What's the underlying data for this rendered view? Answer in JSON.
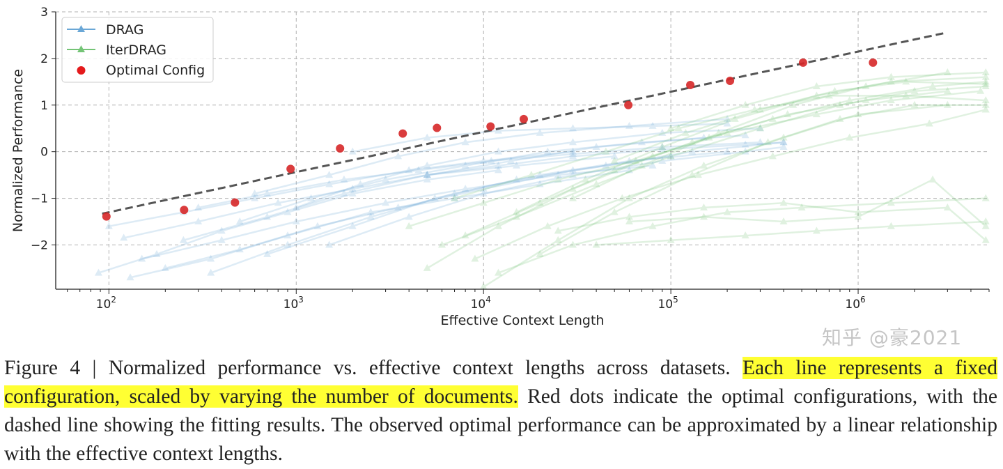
{
  "chart_data": {
    "type": "line",
    "xlabel": "Effective Context Length",
    "ylabel": "Normalized Performance",
    "xscale": "log",
    "xlim": [
      52,
      5000000
    ],
    "ylim": [
      -2.95,
      3
    ],
    "xticks": [
      100,
      1000,
      10000,
      100000,
      1000000
    ],
    "xtick_labels": [
      "10",
      "10",
      "10",
      "10",
      "10"
    ],
    "xtick_exponents": [
      "2",
      "3",
      "4",
      "5",
      "6"
    ],
    "yticks": [
      -2,
      -1,
      0,
      1,
      2,
      3
    ],
    "ytick_labels": [
      "−2",
      "−1",
      "0",
      "1",
      "2",
      "3"
    ],
    "grid": true,
    "legend_placement": "top-left",
    "legend": [
      "DRAG",
      "IterDRAG",
      "Optimal Config"
    ],
    "colors": {
      "DRAG": "#6aa7d6",
      "IterDRAG": "#74c476",
      "optimal": "#d62728",
      "fit": "#555555"
    },
    "series": [
      {
        "name": "DRAG",
        "lines": [
          [
            [
              88,
              -2.6
            ],
            [
              180,
              -2.2
            ],
            [
              400,
              -1.7
            ],
            [
              900,
              -1.3
            ],
            [
              2000,
              -0.9
            ],
            [
              5000,
              -0.6
            ],
            [
              12000,
              -0.4
            ]
          ],
          [
            [
              100,
              -1.6
            ],
            [
              250,
              -1.3
            ],
            [
              600,
              -1.0
            ],
            [
              1500,
              -0.7
            ],
            [
              4000,
              -0.4
            ],
            [
              10000,
              -0.2
            ],
            [
              30000,
              0.0
            ]
          ],
          [
            [
              120,
              -1.85
            ],
            [
              300,
              -1.5
            ],
            [
              800,
              -1.1
            ],
            [
              2000,
              -0.8
            ],
            [
              5000,
              -0.5
            ],
            [
              15000,
              -0.3
            ],
            [
              50000,
              -0.1
            ]
          ],
          [
            [
              150,
              -2.3
            ],
            [
              400,
              -1.9
            ],
            [
              1000,
              -1.5
            ],
            [
              3000,
              -1.1
            ],
            [
              8000,
              -0.8
            ],
            [
              25000,
              -0.5
            ],
            [
              80000,
              -0.3
            ]
          ],
          [
            [
              200,
              -2.5
            ],
            [
              500,
              -2.1
            ],
            [
              1300,
              -1.6
            ],
            [
              3500,
              -1.2
            ],
            [
              10000,
              -0.8
            ],
            [
              30000,
              -0.4
            ],
            [
              100000,
              -0.1
            ]
          ],
          [
            [
              250,
              -1.9
            ],
            [
              700,
              -1.4
            ],
            [
              1800,
              -0.9
            ],
            [
              5000,
              -0.5
            ],
            [
              14000,
              -0.2
            ],
            [
              40000,
              0.1
            ],
            [
              150000,
              0.3
            ]
          ],
          [
            [
              350,
              -2.6
            ],
            [
              900,
              -2.0
            ],
            [
              2500,
              -1.4
            ],
            [
              7000,
              -0.9
            ],
            [
              20000,
              -0.5
            ],
            [
              60000,
              -0.2
            ],
            [
              200000,
              0.0
            ]
          ],
          [
            [
              500,
              -1.5
            ],
            [
              1200,
              -1.0
            ],
            [
              3000,
              -0.6
            ],
            [
              8000,
              -0.3
            ],
            [
              22000,
              0.0
            ],
            [
              70000,
              0.2
            ],
            [
              250000,
              0.35
            ]
          ],
          [
            [
              700,
              -2.2
            ],
            [
              2000,
              -1.6
            ],
            [
              5500,
              -1.0
            ],
            [
              15000,
              -0.6
            ],
            [
              45000,
              -0.3
            ],
            [
              130000,
              0.0
            ],
            [
              400000,
              0.2
            ]
          ],
          [
            [
              1000,
              -1.2
            ],
            [
              2200,
              -0.7
            ],
            [
              5000,
              -0.3
            ],
            [
              12000,
              0.0
            ],
            [
              30000,
              0.2
            ],
            [
              90000,
              0.4
            ],
            [
              300000,
              0.5
            ]
          ],
          [
            [
              1500,
              -2.0
            ],
            [
              4000,
              -1.4
            ],
            [
              10000,
              -0.9
            ],
            [
              30000,
              -0.5
            ],
            [
              90000,
              -0.2
            ],
            [
              250000,
              0.0
            ],
            [
              400000,
              0.1
            ]
          ],
          [
            [
              600,
              -0.9
            ],
            [
              1500,
              -0.5
            ],
            [
              3500,
              -0.1
            ],
            [
              8000,
              0.2
            ],
            [
              20000,
              0.4
            ],
            [
              60000,
              0.55
            ],
            [
              200000,
              0.7
            ]
          ],
          [
            [
              2000,
              0.0
            ],
            [
              5000,
              0.3
            ],
            [
              12000,
              0.45
            ],
            [
              30000,
              0.5
            ],
            [
              80000,
              0.55
            ],
            [
              200000,
              0.6
            ]
          ],
          [
            [
              300,
              -1.2
            ],
            [
              700,
              -0.9
            ],
            [
              1800,
              -0.6
            ],
            [
              4500,
              -0.4
            ],
            [
              11000,
              -0.2
            ],
            [
              30000,
              -0.05
            ],
            [
              90000,
              0.1
            ],
            [
              300000,
              0.2
            ]
          ],
          [
            [
              130,
              -2.7
            ],
            [
              350,
              -2.3
            ],
            [
              900,
              -1.8
            ],
            [
              2500,
              -1.3
            ],
            [
              7000,
              -1.0
            ],
            [
              20000,
              -0.7
            ],
            [
              60000,
              -0.4
            ]
          ],
          [
            [
              5000,
              -0.5
            ],
            [
              12000,
              -0.3
            ],
            [
              30000,
              -0.1
            ],
            [
              90000,
              0.05
            ],
            [
              250000,
              0.15
            ],
            [
              400000,
              0.2
            ]
          ]
        ]
      },
      {
        "name": "IterDRAG",
        "lines": [
          [
            [
              5000,
              -2.5
            ],
            [
              12000,
              -1.6
            ],
            [
              30000,
              -0.8
            ],
            [
              80000,
              -0.1
            ],
            [
              200000,
              0.4
            ],
            [
              600000,
              0.8
            ],
            [
              1500000,
              1.1
            ],
            [
              4500000,
              1.3
            ]
          ],
          [
            [
              8000,
              -1.8
            ],
            [
              20000,
              -1.1
            ],
            [
              50000,
              -0.4
            ],
            [
              130000,
              0.2
            ],
            [
              350000,
              0.7
            ],
            [
              900000,
              1.1
            ],
            [
              2500000,
              1.4
            ],
            [
              4800000,
              1.5
            ]
          ],
          [
            [
              10000,
              -2.9
            ],
            [
              25000,
              -1.9
            ],
            [
              60000,
              -1.0
            ],
            [
              150000,
              -0.3
            ],
            [
              400000,
              0.3
            ],
            [
              1000000,
              0.8
            ],
            [
              3000000,
              1.0
            ]
          ],
          [
            [
              6000,
              -2.0
            ],
            [
              15000,
              -1.4
            ],
            [
              40000,
              -0.7
            ],
            [
              100000,
              -0.1
            ],
            [
              300000,
              0.5
            ],
            [
              800000,
              1.0
            ],
            [
              2000000,
              1.3
            ],
            [
              4800000,
              1.4
            ]
          ],
          [
            [
              15000,
              -1.3
            ],
            [
              35000,
              -0.6
            ],
            [
              90000,
              0.1
            ],
            [
              220000,
              0.7
            ],
            [
              600000,
              1.2
            ],
            [
              1500000,
              1.5
            ],
            [
              4800000,
              1.6
            ]
          ],
          [
            [
              20000,
              -2.2
            ],
            [
              50000,
              -1.3
            ],
            [
              130000,
              -0.5
            ],
            [
              330000,
              0.2
            ],
            [
              800000,
              0.7
            ],
            [
              2000000,
              1.0
            ],
            [
              4800000,
              1.0
            ]
          ],
          [
            [
              30000,
              -1.0
            ],
            [
              70000,
              -0.3
            ],
            [
              180000,
              0.4
            ],
            [
              450000,
              1.0
            ],
            [
              1100000,
              1.4
            ],
            [
              3000000,
              1.7
            ]
          ],
          [
            [
              12000,
              -2.6
            ],
            [
              30000,
              -2.0
            ],
            [
              80000,
              -1.6
            ],
            [
              200000,
              -1.3
            ],
            [
              500000,
              -1.2
            ],
            [
              1500000,
              -1.1
            ],
            [
              4800000,
              -1.0
            ]
          ],
          [
            [
              40000,
              -2.0
            ],
            [
              100000,
              -1.9
            ],
            [
              250000,
              -1.8
            ],
            [
              600000,
              -1.7
            ],
            [
              1500000,
              -1.6
            ],
            [
              4800000,
              -1.5
            ]
          ],
          [
            [
              25000,
              -1.7
            ],
            [
              60000,
              -1.4
            ],
            [
              150000,
              -1.2
            ],
            [
              400000,
              -1.1
            ],
            [
              1000000,
              -1.3
            ],
            [
              3000000,
              -1.2
            ],
            [
              4800000,
              -1.9
            ]
          ],
          [
            [
              50000,
              -0.2
            ],
            [
              120000,
              0.4
            ],
            [
              300000,
              0.9
            ],
            [
              750000,
              1.3
            ],
            [
              1800000,
              1.5
            ],
            [
              4800000,
              1.45
            ]
          ],
          [
            [
              7000,
              -1.0
            ],
            [
              18000,
              -0.5
            ],
            [
              45000,
              0.0
            ],
            [
              110000,
              0.5
            ],
            [
              280000,
              0.9
            ],
            [
              700000,
              1.2
            ],
            [
              1800000,
              1.2
            ],
            [
              4800000,
              1.1
            ]
          ],
          [
            [
              100000,
              0.5
            ],
            [
              250000,
              1.0
            ],
            [
              600000,
              1.4
            ],
            [
              1500000,
              1.6
            ],
            [
              4800000,
              1.7
            ]
          ],
          [
            [
              9000,
              -2.3
            ],
            [
              22000,
              -1.6
            ],
            [
              55000,
              -1.0
            ],
            [
              140000,
              -0.5
            ],
            [
              350000,
              -0.1
            ],
            [
              900000,
              0.3
            ],
            [
              2400000,
              0.6
            ],
            [
              4800000,
              0.9
            ]
          ],
          [
            [
              60000,
              -1.5
            ],
            [
              150000,
              -1.4
            ],
            [
              400000,
              -1.5
            ],
            [
              1000000,
              -1.4
            ],
            [
              2500000,
              -0.6
            ],
            [
              4800000,
              -1.6
            ]
          ],
          [
            [
              4000,
              -1.6
            ],
            [
              10000,
              -1.1
            ],
            [
              25000,
              -0.6
            ],
            [
              65000,
              -0.2
            ],
            [
              160000,
              0.3
            ],
            [
              420000,
              0.8
            ],
            [
              1100000,
              1.1
            ],
            [
              3000000,
              1.3
            ]
          ]
        ]
      }
    ],
    "optimal_config": [
      [
        97,
        -1.39
      ],
      [
        252,
        -1.25
      ],
      [
        471,
        -1.09
      ],
      [
        933,
        -0.37
      ],
      [
        1714,
        0.07
      ],
      [
        3705,
        0.39
      ],
      [
        5640,
        0.51
      ],
      [
        10900,
        0.54
      ],
      [
        16400,
        0.7
      ],
      [
        59300,
        1.0
      ],
      [
        127000,
        1.43
      ],
      [
        207000,
        1.52
      ],
      [
        508000,
        1.91
      ],
      [
        1200000,
        1.91
      ]
    ],
    "fit_line": {
      "x": [
        92,
        2850000
      ],
      "y": [
        -1.33,
        2.54
      ],
      "style": "dashed"
    }
  },
  "caption": {
    "part1": "Figure 4 | Normalized performance vs. effective context lengths across datasets. ",
    "highlight": "Each line represents a fixed configuration, scaled by varying the number of documents.",
    "part2": " Red dots indicate the optimal configurations, with the dashed line showing the fitting results. The observed optimal performance can be approximated by a linear relationship with the effective context lengths.",
    "highlight_color": "#ffff33"
  },
  "watermark": "知乎 @豪2021"
}
